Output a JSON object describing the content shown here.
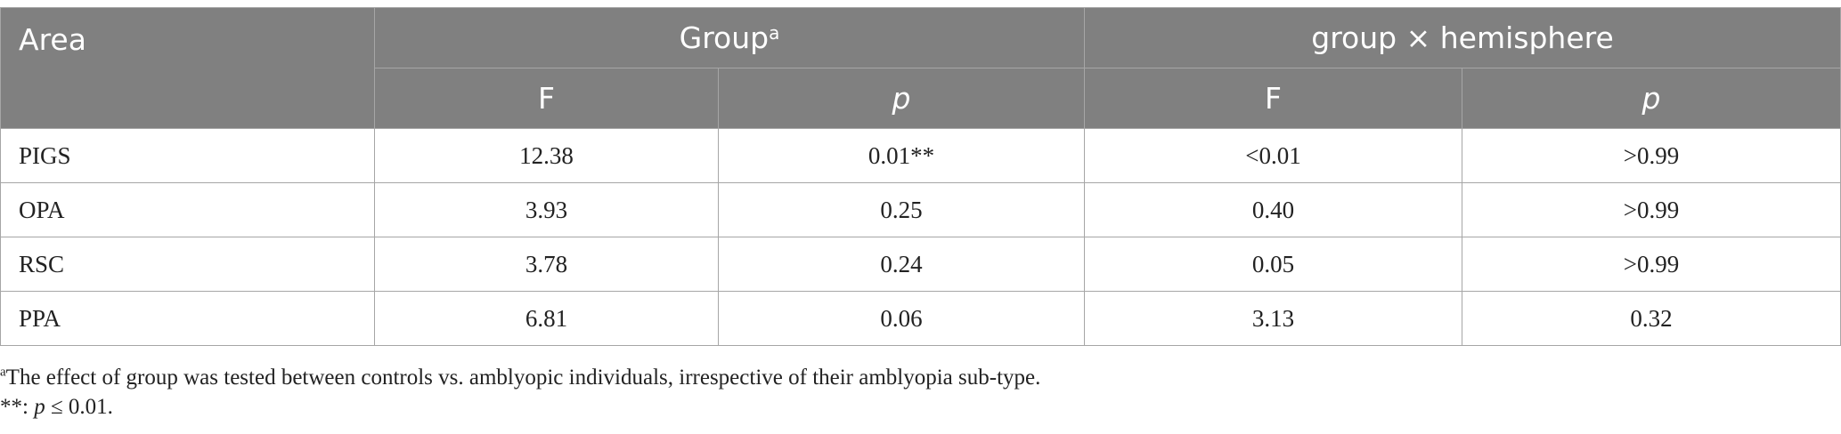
{
  "table": {
    "header": {
      "area": "Area",
      "group": "Group",
      "group_marker": "a",
      "interaction": "group × hemisphere",
      "sub": [
        "F",
        "p",
        "F",
        "p"
      ]
    },
    "rows": [
      {
        "area": "PIGS",
        "group_f": "12.38",
        "group_p": "0.01**",
        "inter_f": "<0.01",
        "inter_p": ">0.99"
      },
      {
        "area": "OPA",
        "group_f": "3.93",
        "group_p": "0.25",
        "inter_f": "0.40",
        "inter_p": ">0.99"
      },
      {
        "area": "RSC",
        "group_f": "3.78",
        "group_p": "0.24",
        "inter_f": "0.05",
        "inter_p": ">0.99"
      },
      {
        "area": "PPA",
        "group_f": "6.81",
        "group_p": "0.06",
        "inter_f": "3.13",
        "inter_p": "0.32"
      }
    ]
  },
  "footnotes": {
    "a_marker": "a",
    "a_text": "The effect of group was tested between controls vs. amblyopic individuals, irrespective of their amblyopia sub-type.",
    "sig_prefix": "**: ",
    "sig_p": "p",
    "sig_rest": " ≤ 0.01."
  }
}
